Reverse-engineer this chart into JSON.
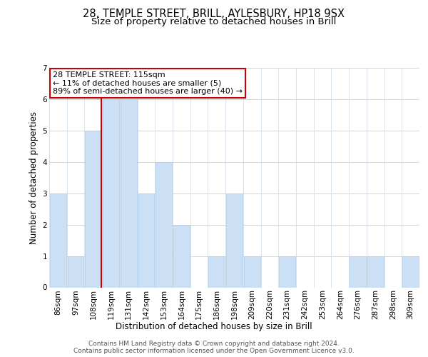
{
  "title_line1": "28, TEMPLE STREET, BRILL, AYLESBURY, HP18 9SX",
  "title_line2": "Size of property relative to detached houses in Brill",
  "xlabel": "Distribution of detached houses by size in Brill",
  "ylabel": "Number of detached properties",
  "bar_labels": [
    "86sqm",
    "97sqm",
    "108sqm",
    "119sqm",
    "131sqm",
    "142sqm",
    "153sqm",
    "164sqm",
    "175sqm",
    "186sqm",
    "198sqm",
    "209sqm",
    "220sqm",
    "231sqm",
    "242sqm",
    "253sqm",
    "264sqm",
    "276sqm",
    "287sqm",
    "298sqm",
    "309sqm"
  ],
  "bar_values": [
    3,
    1,
    5,
    6,
    6,
    3,
    4,
    2,
    0,
    1,
    3,
    1,
    0,
    1,
    0,
    0,
    0,
    1,
    1,
    0,
    1
  ],
  "bar_color": "#cce0f5",
  "bar_edgecolor": "#aaccee",
  "vline_index": 2,
  "vline_color": "#cc0000",
  "ylim": [
    0,
    7
  ],
  "yticks": [
    0,
    1,
    2,
    3,
    4,
    5,
    6,
    7
  ],
  "annotation_line1": "28 TEMPLE STREET: 115sqm",
  "annotation_line2": "← 11% of detached houses are smaller (5)",
  "annotation_line3": "89% of semi-detached houses are larger (40) →",
  "annotation_box_color": "#ffffff",
  "annotation_box_edgecolor": "#cc0000",
  "footer_line1": "Contains HM Land Registry data © Crown copyright and database right 2024.",
  "footer_line2": "Contains public sector information licensed under the Open Government Licence v3.0.",
  "background_color": "#ffffff",
  "grid_color": "#c8d8e8",
  "title_fontsize": 10.5,
  "subtitle_fontsize": 9.5,
  "axis_label_fontsize": 8.5,
  "tick_fontsize": 7.5,
  "annotation_fontsize": 8,
  "footer_fontsize": 6.5
}
